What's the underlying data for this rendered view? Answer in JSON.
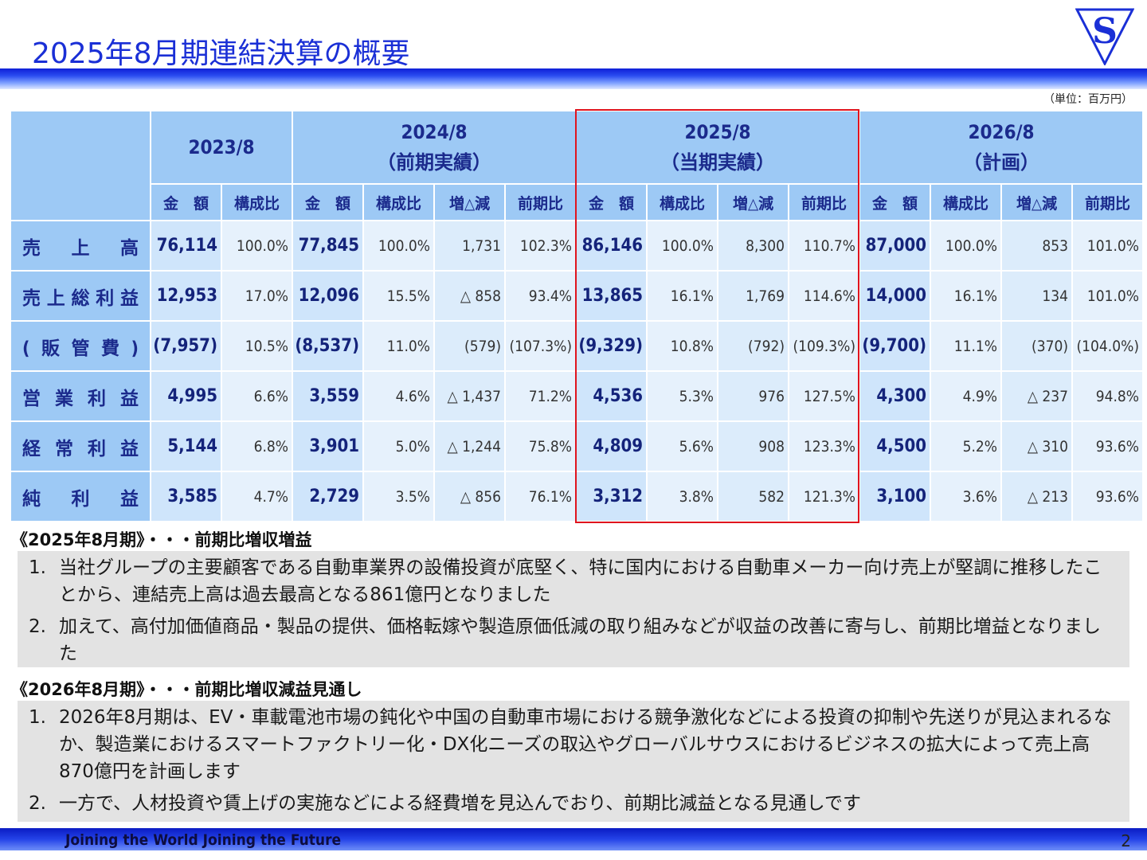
{
  "title": "2025年8月期連結決算の概要",
  "logo_letter": "S",
  "unit": "（単位：百万円）",
  "table": {
    "periods": [
      {
        "label": "2023/8",
        "note": ""
      },
      {
        "label": "2024/8",
        "note": "（前期実績）"
      },
      {
        "label": "2025/8",
        "note": "（当期実績）"
      },
      {
        "label": "2026/8",
        "note": "（計画）"
      }
    ],
    "sub_headers": {
      "amount": "金　額",
      "ratio": "構成比",
      "change": "増△減",
      "yoy": "前期比"
    },
    "rows": [
      {
        "label": "売上高",
        "cells": [
          "76,114",
          "100.0%",
          "77,845",
          "100.0%",
          "1,731",
          "102.3%",
          "86,146",
          "100.0%",
          "8,300",
          "110.7%",
          "87,000",
          "100.0%",
          "853",
          "101.0%"
        ]
      },
      {
        "label": "売上総利益",
        "cells": [
          "12,953",
          "17.0%",
          "12,096",
          "15.5%",
          "△ 858",
          "93.4%",
          "13,865",
          "16.1%",
          "1,769",
          "114.6%",
          "14,000",
          "16.1%",
          "134",
          "101.0%"
        ]
      },
      {
        "label": "(販管費)",
        "cells": [
          "(7,957)",
          "10.5%",
          "(8,537)",
          "11.0%",
          "(579)",
          "(107.3%)",
          "(9,329)",
          "10.8%",
          "(792)",
          "(109.3%)",
          "(9,700)",
          "11.1%",
          "(370)",
          "(104.0%)"
        ]
      },
      {
        "label": "営業利益",
        "cells": [
          "4,995",
          "6.6%",
          "3,559",
          "4.6%",
          "△ 1,437",
          "71.2%",
          "4,536",
          "5.3%",
          "976",
          "127.5%",
          "4,300",
          "4.9%",
          "△ 237",
          "94.8%"
        ]
      },
      {
        "label": "経常利益",
        "cells": [
          "5,144",
          "6.8%",
          "3,901",
          "5.0%",
          "△ 1,244",
          "75.8%",
          "4,809",
          "5.6%",
          "908",
          "123.3%",
          "4,500",
          "5.2%",
          "△ 310",
          "93.6%"
        ]
      },
      {
        "label": "純利益",
        "cells": [
          "3,585",
          "4.7%",
          "2,729",
          "3.5%",
          "△ 856",
          "76.1%",
          "3,312",
          "3.8%",
          "582",
          "121.3%",
          "3,100",
          "3.6%",
          "△ 213",
          "93.6%"
        ]
      }
    ]
  },
  "section1": {
    "heading": "《2025年8月期》・・・前期比増収増益",
    "items": [
      {
        "num": "1.",
        "text": "当社グループの主要顧客である自動車業界の設備投資が底堅く、特に国内における自動車メーカー向け売上が堅調に推移したことから、連結売上高は過去最高となる861億円となりました"
      },
      {
        "num": "2.",
        "text": "加えて、高付加価値商品・製品の提供、価格転嫁や製造原価低減の取り組みなどが収益の改善に寄与し、前期比増益となりました"
      }
    ]
  },
  "section2": {
    "heading": "《2026年8月期》・・・前期比増収減益見通し",
    "items": [
      {
        "num": "1.",
        "text": "2026年8月期は、EV・車載電池市場の鈍化や中国の自動車市場における競争激化などによる投資の抑制や先送りが見込まれるなか、製造業におけるスマートファクトリー化・DX化ニーズの取込やグローバルサウスにおけるビジネスの拡大によって売上高870億円を計画します"
      },
      {
        "num": "2.",
        "text": "一方で、人材投資や賃上げの実施などによる経費増を見込んでおり、前期比減益となる見通しです"
      }
    ]
  },
  "footer": {
    "slogan": "Joining the World  Joining the Future",
    "page": "2"
  }
}
